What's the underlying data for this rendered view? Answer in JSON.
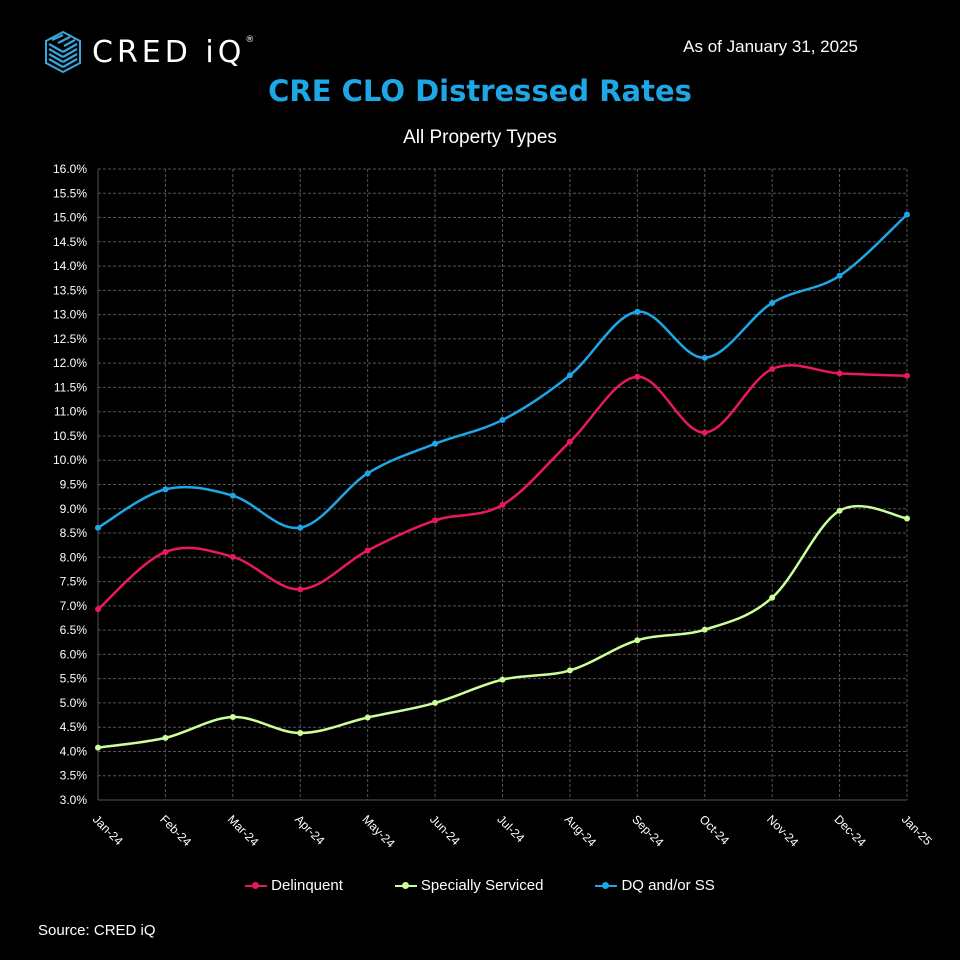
{
  "header": {
    "logo_text": "CRED iQ",
    "logo_mark": "®",
    "as_of": "As of January 31, 2025"
  },
  "footer": {
    "source": "Source:  CRED iQ"
  },
  "colors": {
    "delinquent": "#e8195e",
    "specially_serviced": "#ccff99",
    "dq_ss": "#1ea7e6",
    "grid": "#555555"
  },
  "chart_data": {
    "type": "line",
    "title": "CRE CLO Distressed Rates",
    "subtitle": "All Property Types",
    "xlabel": "",
    "ylabel": "",
    "ylim": [
      3.0,
      16.0
    ],
    "y_ticks": [
      "3.0%",
      "3.5%",
      "4.0%",
      "4.5%",
      "5.0%",
      "5.5%",
      "6.0%",
      "6.5%",
      "7.0%",
      "7.5%",
      "8.0%",
      "8.5%",
      "9.0%",
      "9.5%",
      "10.0%",
      "10.5%",
      "11.0%",
      "11.5%",
      "12.0%",
      "12.5%",
      "13.0%",
      "13.5%",
      "14.0%",
      "14.5%",
      "15.0%",
      "15.5%",
      "16.0%"
    ],
    "categories": [
      "Jan-24",
      "Feb-24",
      "Mar-24",
      "Apr-24",
      "May-24",
      "Jun-24",
      "Jul-24",
      "Aug-24",
      "Sep-24",
      "Oct-24",
      "Nov-24",
      "Dec-24",
      "Jan-25"
    ],
    "grid": true,
    "legend_position": "bottom",
    "series": [
      {
        "name": "Delinquent",
        "color": "#e8195e",
        "values": [
          6.93,
          8.11,
          8.01,
          7.34,
          8.14,
          8.76,
          9.08,
          10.38,
          11.72,
          10.57,
          11.88,
          11.79,
          11.74
        ]
      },
      {
        "name": "Specially Serviced",
        "color": "#ccff99",
        "values": [
          4.08,
          4.28,
          4.71,
          4.38,
          4.7,
          5.0,
          5.48,
          5.67,
          6.29,
          6.51,
          7.17,
          8.96,
          8.8
        ]
      },
      {
        "name": "DQ and/or SS",
        "color": "#1ea7e6",
        "values": [
          8.61,
          9.4,
          9.27,
          8.61,
          9.73,
          10.34,
          10.83,
          11.75,
          13.06,
          12.11,
          13.24,
          13.8,
          15.06
        ]
      }
    ]
  }
}
